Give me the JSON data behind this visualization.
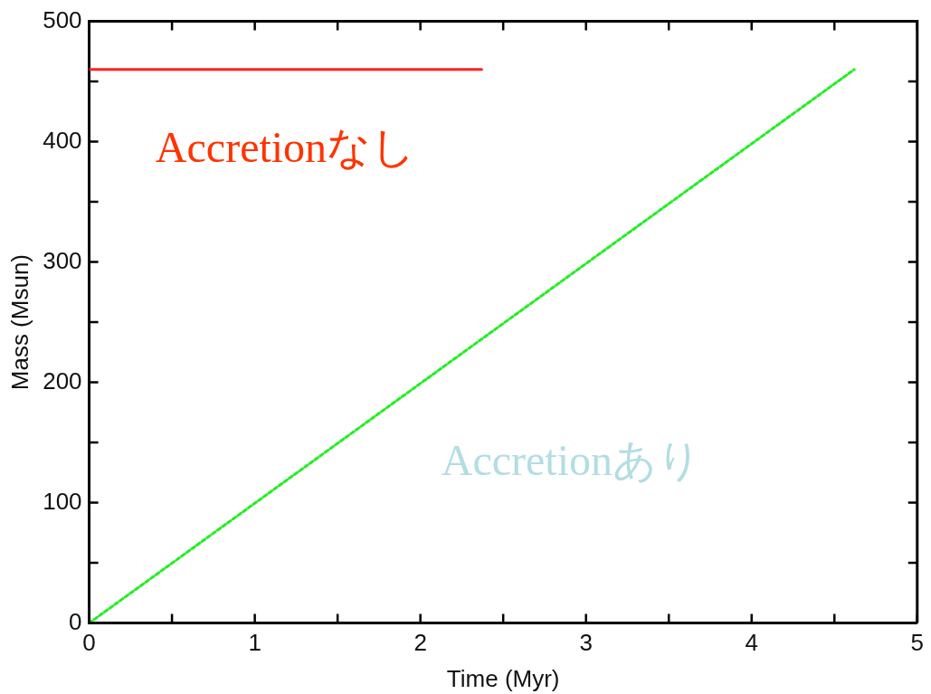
{
  "chart_data": {
    "type": "line",
    "xlabel": "Time (Myr)",
    "ylabel": "Mass (Msun)",
    "series": [
      {
        "name": "Accretionなし",
        "color": "#ff2020",
        "x": [
          0,
          2.37
        ],
        "values": [
          460,
          460
        ],
        "line_style": "solid"
      },
      {
        "name": "Accretionあり",
        "color": "#22ee22",
        "x": [
          0,
          4.62
        ],
        "values": [
          0,
          460
        ],
        "line_style": "dotted"
      }
    ],
    "xlim": [
      0,
      5
    ],
    "xticks": [
      0,
      {
        "value": 0.5,
        "label": null
      },
      1,
      {
        "value": 1.5,
        "label": null
      },
      2,
      {
        "value": 2.5,
        "label": null
      },
      3,
      {
        "value": 3.5,
        "label": null
      },
      4,
      {
        "value": 4.5,
        "label": null
      },
      5
    ],
    "ylim": [
      0,
      500
    ],
    "yticks": [
      0,
      {
        "value": 50,
        "label": null
      },
      100,
      {
        "value": 150,
        "label": null
      },
      200,
      {
        "value": 250,
        "label": null
      },
      300,
      {
        "value": 350,
        "label": null
      },
      400,
      {
        "value": 450,
        "label": null
      },
      500
    ],
    "grid": false,
    "legend": false,
    "marker": "none"
  }
}
